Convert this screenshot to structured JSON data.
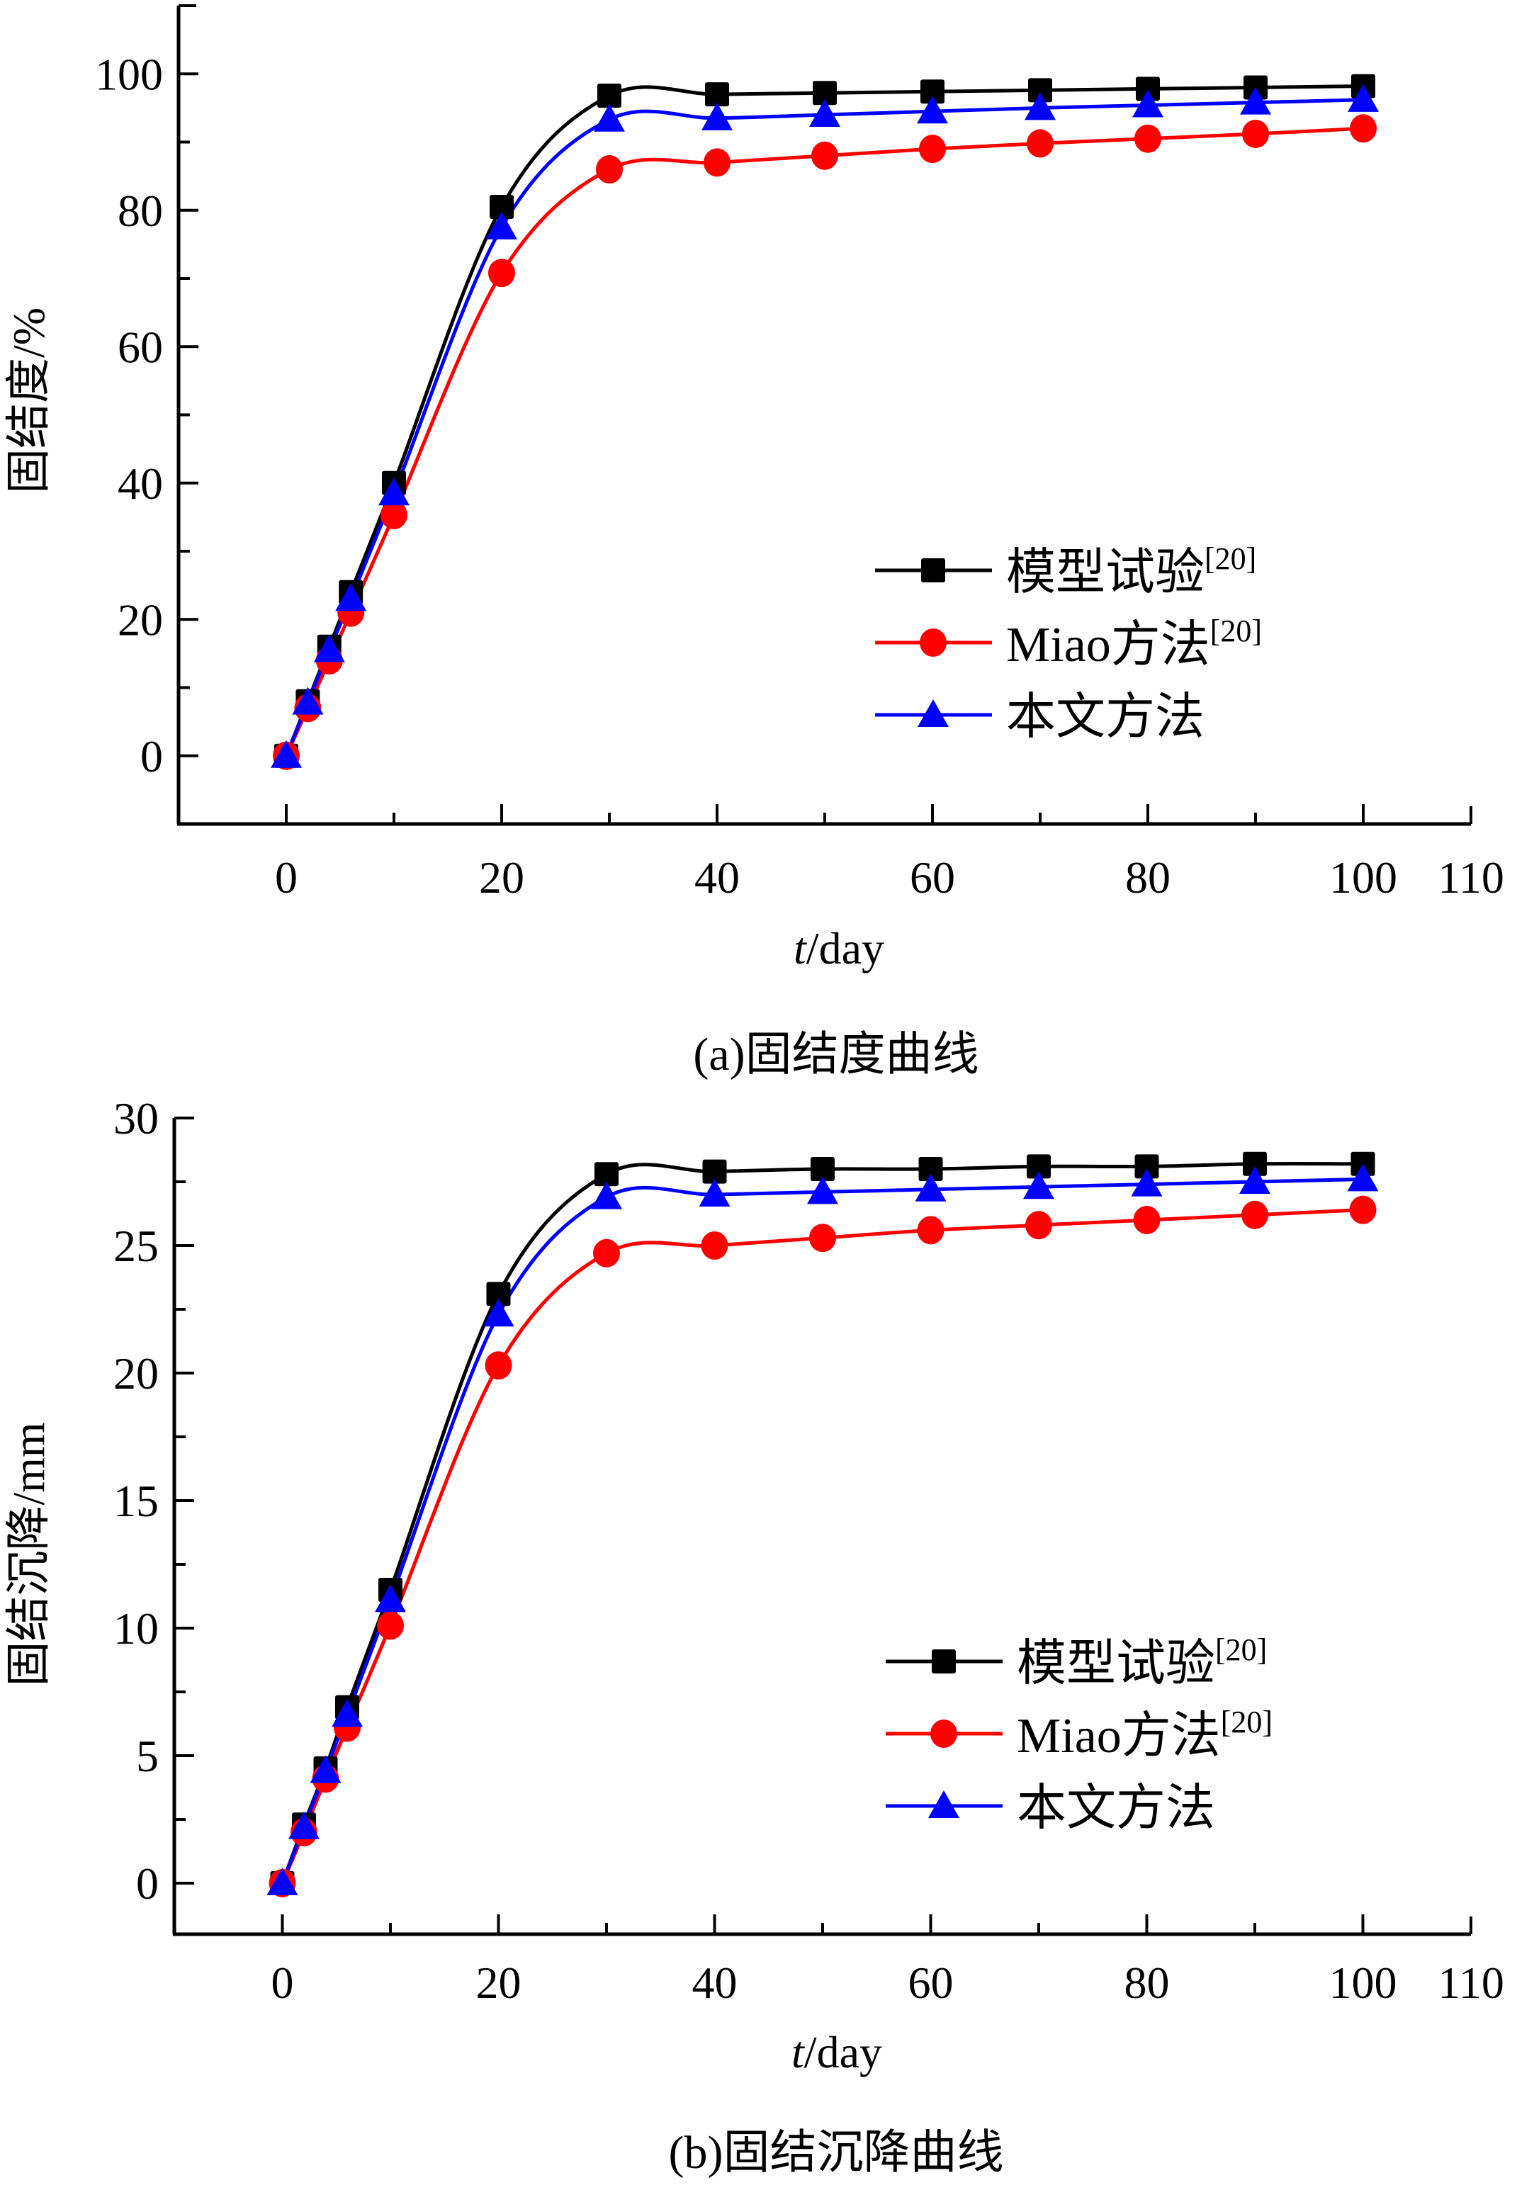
{
  "chart_data": [
    {
      "id": "a",
      "type": "line",
      "caption": "(a)固结度曲线",
      "xlabel_italic": "t",
      "xlabel_rest": "/day",
      "ylabel": "固结度/%",
      "xlim": [
        -10,
        110
      ],
      "ylim": [
        -10,
        110
      ],
      "xticks": [
        0,
        20,
        40,
        60,
        80,
        100,
        110
      ],
      "xtick_labels": [
        "0",
        "20",
        "40",
        "60",
        "80",
        "100",
        "110"
      ],
      "xminor": [
        10,
        30,
        50,
        70,
        90
      ],
      "yticks": [
        0,
        20,
        40,
        60,
        80,
        100
      ],
      "ytick_labels": [
        "0",
        "20",
        "40",
        "60",
        "80",
        "100"
      ],
      "yminor": [
        10,
        30,
        50,
        70,
        90
      ],
      "legend_position": "center-right",
      "x": [
        0,
        2,
        4,
        6,
        10,
        20,
        30,
        40,
        50,
        60,
        70,
        80,
        90,
        100
      ],
      "series": [
        {
          "name": "模型试验",
          "ref": "[20]",
          "color": "#000000",
          "marker": "square",
          "values": [
            0,
            8,
            16,
            24,
            40,
            80.5,
            96.8,
            97.0,
            97.2,
            97.4,
            97.6,
            97.8,
            98.0,
            98.2
          ]
        },
        {
          "name": "Miao方法",
          "ref": "[20]",
          "color": "#ff0000",
          "marker": "circle",
          "values": [
            0,
            7,
            14,
            21,
            35.3,
            70.8,
            86.0,
            87.0,
            88.0,
            89.0,
            89.8,
            90.5,
            91.2,
            92.0
          ]
        },
        {
          "name": "本文方法",
          "ref": "",
          "color": "#0000ff",
          "marker": "triangle",
          "values": [
            0,
            7.8,
            15.5,
            23,
            38.5,
            77.5,
            93.3,
            93.5,
            94.0,
            94.5,
            95.0,
            95.4,
            95.8,
            96.2
          ]
        }
      ]
    },
    {
      "id": "b",
      "type": "line",
      "caption": "(b)固结沉降曲线",
      "xlabel_italic": "t",
      "xlabel_rest": "/day",
      "ylabel": "固结沉降/mm",
      "xlim": [
        -10,
        110
      ],
      "ylim": [
        -2,
        30
      ],
      "xticks": [
        0,
        20,
        40,
        60,
        80,
        100,
        110
      ],
      "xtick_labels": [
        "0",
        "20",
        "40",
        "60",
        "80",
        "100",
        "110"
      ],
      "xminor": [
        10,
        30,
        50,
        70,
        90
      ],
      "yticks": [
        0,
        5,
        10,
        15,
        20,
        25,
        30
      ],
      "ytick_labels": [
        "0",
        "5",
        "10",
        "15",
        "20",
        "25",
        "30"
      ],
      "yminor": [
        2.5,
        7.5,
        12.5,
        17.5,
        22.5,
        27.5
      ],
      "legend_position": "center-right",
      "x": [
        0,
        2,
        4,
        6,
        10,
        20,
        30,
        40,
        50,
        60,
        70,
        80,
        90,
        100
      ],
      "series": [
        {
          "name": "模型试验",
          "ref": "[20]",
          "color": "#000000",
          "marker": "square",
          "values": [
            0,
            2.3,
            4.5,
            6.9,
            11.5,
            23.1,
            27.8,
            27.9,
            28.0,
            28.0,
            28.1,
            28.1,
            28.2,
            28.2
          ]
        },
        {
          "name": "Miao方法",
          "ref": "[20]",
          "color": "#ff0000",
          "marker": "circle",
          "values": [
            0,
            2.0,
            4.1,
            6.1,
            10.1,
            20.3,
            24.7,
            25.0,
            25.3,
            25.6,
            25.8,
            26.0,
            26.2,
            26.4
          ]
        },
        {
          "name": "本文方法",
          "ref": "",
          "color": "#0000ff",
          "marker": "triangle",
          "values": [
            0,
            2.2,
            4.4,
            6.6,
            11.1,
            22.3,
            26.9,
            27.0,
            27.1,
            27.2,
            27.3,
            27.4,
            27.5,
            27.6
          ]
        }
      ]
    }
  ]
}
